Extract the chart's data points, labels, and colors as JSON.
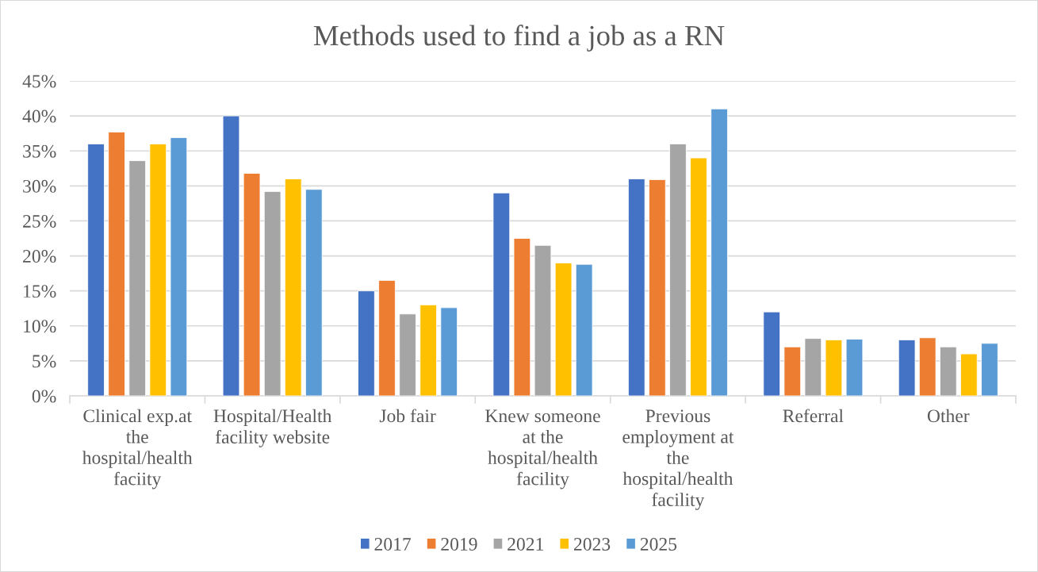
{
  "chart_data": {
    "type": "bar",
    "title": "Methods used to find a job as a RN",
    "categories": [
      "Clinical exp.at\nthe\nhospital/health\nfaciity",
      "Hospital/Health\nfacility website",
      "Job fair",
      "Knew someone\nat the\nhospital/health\nfacility",
      "Previous\nemployment at\nthe\nhospital/health\nfacility",
      "Referral",
      "Other"
    ],
    "series": [
      {
        "name": "2017",
        "color": "#4472c4",
        "values": [
          36,
          40,
          15,
          29,
          31,
          12,
          8
        ]
      },
      {
        "name": "2019",
        "color": "#ed7d31",
        "values": [
          37.7,
          31.8,
          16.5,
          22.5,
          30.9,
          7,
          8.3
        ]
      },
      {
        "name": "2021",
        "color": "#a5a5a5",
        "values": [
          33.6,
          29.2,
          11.7,
          21.5,
          36,
          8.2,
          7
        ]
      },
      {
        "name": "2023",
        "color": "#ffc000",
        "values": [
          36,
          31,
          13,
          19,
          34,
          8,
          6
        ]
      },
      {
        "name": "2025",
        "color": "#5b9bd5",
        "values": [
          36.9,
          29.5,
          12.6,
          18.8,
          41,
          8.1,
          7.5
        ]
      }
    ],
    "ylim": [
      0,
      45
    ],
    "yticks": [
      {
        "value": 0,
        "label": "0%"
      },
      {
        "value": 5,
        "label": "5%"
      },
      {
        "value": 10,
        "label": "10%"
      },
      {
        "value": 15,
        "label": "15%"
      },
      {
        "value": 20,
        "label": "20%"
      },
      {
        "value": 25,
        "label": "25%"
      },
      {
        "value": 30,
        "label": "30%"
      },
      {
        "value": 35,
        "label": "35%"
      },
      {
        "value": 40,
        "label": "40%"
      },
      {
        "value": 45,
        "label": "45%"
      }
    ],
    "grid": "y",
    "legend": "bottom"
  }
}
